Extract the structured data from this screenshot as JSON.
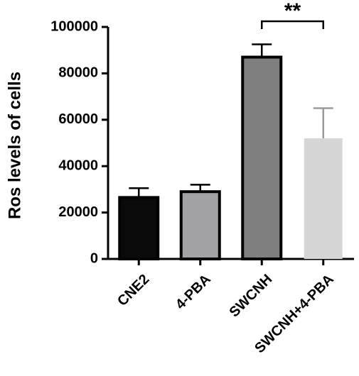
{
  "chart_data": {
    "type": "bar",
    "title": "",
    "xlabel": "",
    "ylabel": "Ros levels of cells",
    "ylim": [
      0,
      100000
    ],
    "yticks": [
      0,
      20000,
      40000,
      60000,
      80000,
      100000
    ],
    "categories": [
      "CNE2",
      "4-PBA",
      "SWCNH",
      "SWCNH+4-PBA"
    ],
    "values": [
      26500,
      29000,
      87000,
      52000
    ],
    "errors": [
      4000,
      3000,
      5500,
      13000
    ],
    "colors": [
      "#0a0a0a",
      "#a3a3a7",
      "#7f7f7f",
      "#d6d6d6"
    ],
    "significance": {
      "from": 2,
      "to": 3,
      "label": "**"
    },
    "grid": false,
    "legend": "none"
  }
}
